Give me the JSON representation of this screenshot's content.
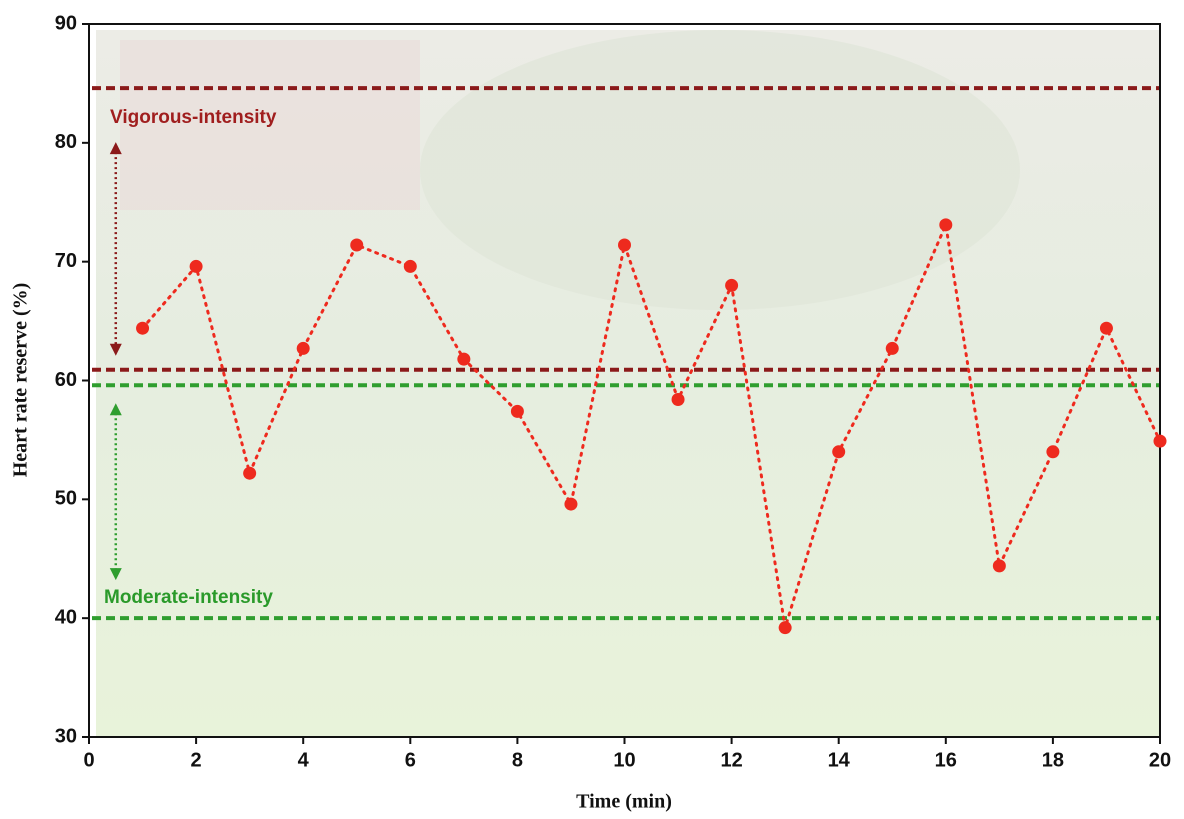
{
  "chart_data": {
    "type": "line",
    "x_label": "Time (min)",
    "y_label": "Heart rate reserve (%)",
    "x": [
      1,
      2,
      3,
      4,
      5,
      6,
      7,
      8,
      9,
      10,
      11,
      12,
      13,
      14,
      15,
      16,
      17,
      18,
      19,
      20
    ],
    "values": [
      64.4,
      69.6,
      52.2,
      62.7,
      71.4,
      69.6,
      61.8,
      57.4,
      49.6,
      71.4,
      58.4,
      68.0,
      39.2,
      54.0,
      62.7,
      73.1,
      44.4,
      54.0,
      64.4,
      54.9
    ],
    "color": "#ee2a1e",
    "xlim": [
      0,
      20
    ],
    "xticks": [
      0,
      2,
      4,
      6,
      8,
      10,
      12,
      14,
      16,
      18,
      20
    ],
    "ylim": [
      30,
      90
    ],
    "yticks": [
      30,
      40,
      50,
      60,
      70,
      80,
      90
    ],
    "reference_lines": [
      {
        "value": 84.6,
        "color": "#8b1a1a"
      },
      {
        "value": 60.9,
        "color": "#8b1a1a"
      },
      {
        "value": 59.6,
        "color": "#2f9e2f"
      },
      {
        "value": 40,
        "color": "#2f9e2f"
      }
    ],
    "annotations": [
      {
        "text": "Vigorous-intensity",
        "color": "#a01e1e"
      },
      {
        "text": "Moderate-intensity",
        "color": "#2a9a2a"
      }
    ]
  }
}
